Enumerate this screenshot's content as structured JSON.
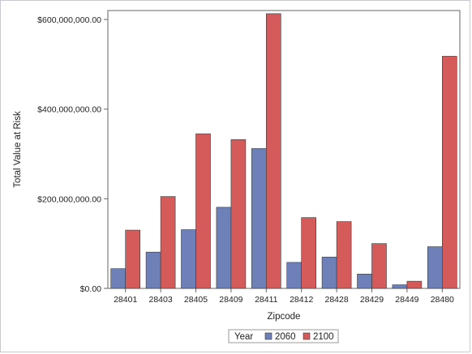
{
  "chart_data": {
    "type": "bar",
    "title": "",
    "xlabel": "Zipcode",
    "ylabel": "Total Value at Risk",
    "categories": [
      "28401",
      "28403",
      "28405",
      "28409",
      "28411",
      "28412",
      "28428",
      "28429",
      "28449",
      "28480"
    ],
    "series": [
      {
        "name": "2060",
        "color": "#6e80b8",
        "values": [
          44000000,
          81000000,
          131000000,
          181000000,
          312000000,
          58000000,
          70000000,
          32000000,
          8000000,
          93000000
        ]
      },
      {
        "name": "2100",
        "color": "#d55b5b",
        "values": [
          130000000,
          205000000,
          345000000,
          332000000,
          613000000,
          158000000,
          149000000,
          100000000,
          16000000,
          518000000
        ]
      }
    ],
    "ylim": [
      0,
      620000000
    ],
    "yticks": [
      0,
      200000000,
      400000000,
      600000000
    ],
    "ytick_labels": [
      "$0.00",
      "$200,000,000.00",
      "$400,000,000.00",
      "$600,000,000.00"
    ],
    "grid": false,
    "legend": {
      "title": "Year",
      "position": "bottom",
      "entries": [
        "2060",
        "2100"
      ]
    }
  }
}
